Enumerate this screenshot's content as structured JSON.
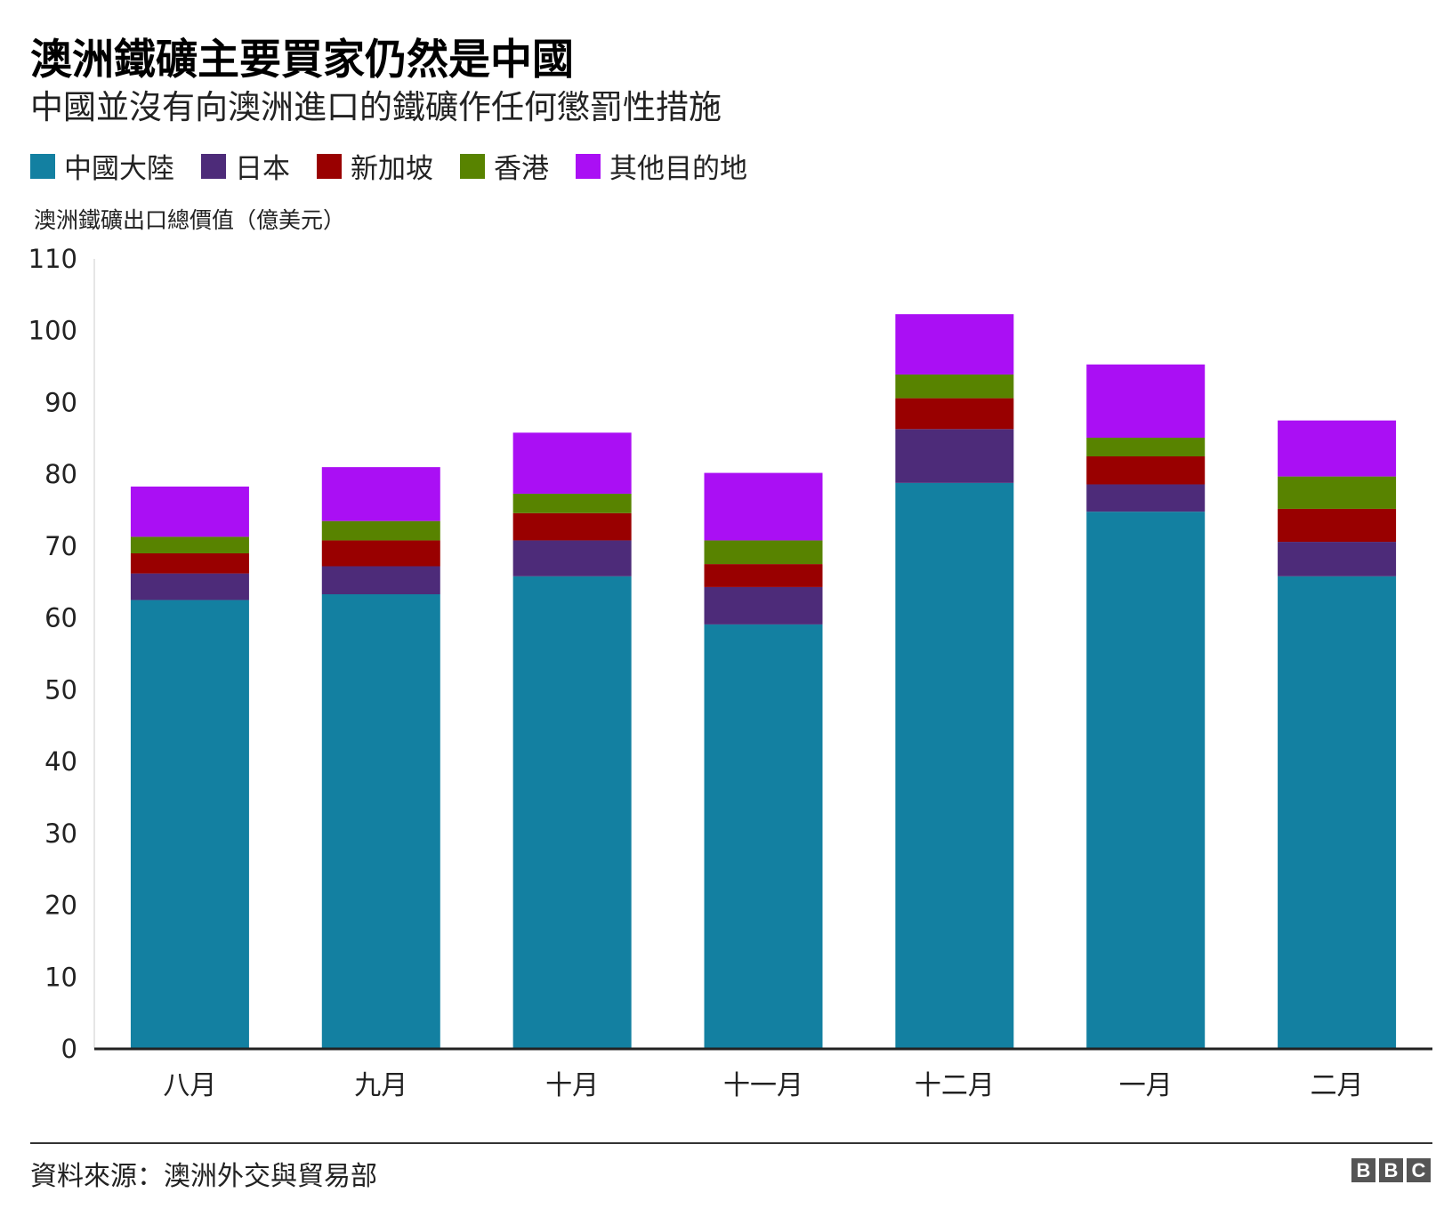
{
  "header": {
    "title": "澳洲鐵礦主要買家仍然是中國",
    "subtitle": "中國並沒有向澳洲進口的鐵礦作任何懲罰性措施"
  },
  "legend": [
    {
      "label": "中國大陸",
      "color": "#1380A1"
    },
    {
      "label": "日本",
      "color": "#4D2B79"
    },
    {
      "label": "新加坡",
      "color": "#990000"
    },
    {
      "label": "香港",
      "color": "#588300"
    },
    {
      "label": "其他目的地",
      "color": "#AA0FF4"
    }
  ],
  "chart_data": {
    "type": "bar",
    "stacked": true,
    "title": "澳洲鐵礦主要買家仍然是中國",
    "subtitle": "中國並沒有向澳洲進口的鐵礦作任何懲罰性措施",
    "ylabel": "澳洲鐵礦出口總價值（億美元）",
    "xlabel": "",
    "ylim": [
      0,
      110
    ],
    "yticks": [
      0,
      10,
      20,
      30,
      40,
      50,
      60,
      70,
      80,
      90,
      100,
      110
    ],
    "grid": false,
    "legend_position": "top-left",
    "categories": [
      "八月",
      "九月",
      "十月",
      "十一月",
      "十二月",
      "一月",
      "二月"
    ],
    "series": [
      {
        "name": "中國大陸",
        "color": "#1380A1",
        "values": [
          62.5,
          63.3,
          65.8,
          59.1,
          78.8,
          74.8,
          65.8
        ]
      },
      {
        "name": "日本",
        "color": "#4D2B79",
        "values": [
          3.7,
          3.9,
          5.0,
          5.2,
          7.5,
          3.8,
          4.8
        ]
      },
      {
        "name": "新加坡",
        "color": "#990000",
        "values": [
          2.8,
          3.6,
          3.8,
          3.2,
          4.3,
          3.9,
          4.6
        ]
      },
      {
        "name": "香港",
        "color": "#588300",
        "values": [
          2.3,
          2.7,
          2.7,
          3.3,
          3.3,
          2.6,
          4.5
        ]
      },
      {
        "name": "其他目的地",
        "color": "#AA0FF4",
        "values": [
          7.0,
          7.5,
          8.5,
          9.4,
          8.4,
          10.2,
          7.8
        ]
      }
    ]
  },
  "footer": {
    "source": "資料來源：澳洲外交與貿易部",
    "brand": [
      "B",
      "B",
      "C"
    ]
  }
}
